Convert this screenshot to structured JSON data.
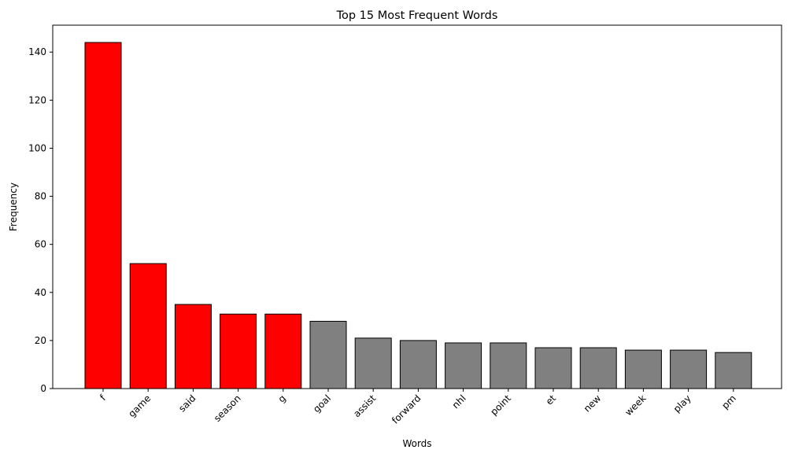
{
  "chart_data": {
    "type": "bar",
    "title": "Top 15 Most Frequent Words",
    "xlabel": "Words",
    "ylabel": "Frequency",
    "categories": [
      "f",
      "game",
      "said",
      "season",
      "g",
      "goal",
      "assist",
      "forward",
      "nhl",
      "point",
      "et",
      "new",
      "week",
      "play",
      "pm"
    ],
    "values": [
      144,
      52,
      35,
      31,
      31,
      28,
      21,
      20,
      19,
      19,
      17,
      17,
      16,
      16,
      15
    ],
    "highlight_count": 5,
    "colors": {
      "highlight": "#ff0000",
      "default": "#808080",
      "edge": "#000000"
    },
    "ylim": [
      0,
      151.2
    ],
    "yticks": [
      "0",
      "20",
      "40",
      "60",
      "80",
      "100",
      "120",
      "140"
    ],
    "grid": false,
    "xtick_rotation": 45
  }
}
